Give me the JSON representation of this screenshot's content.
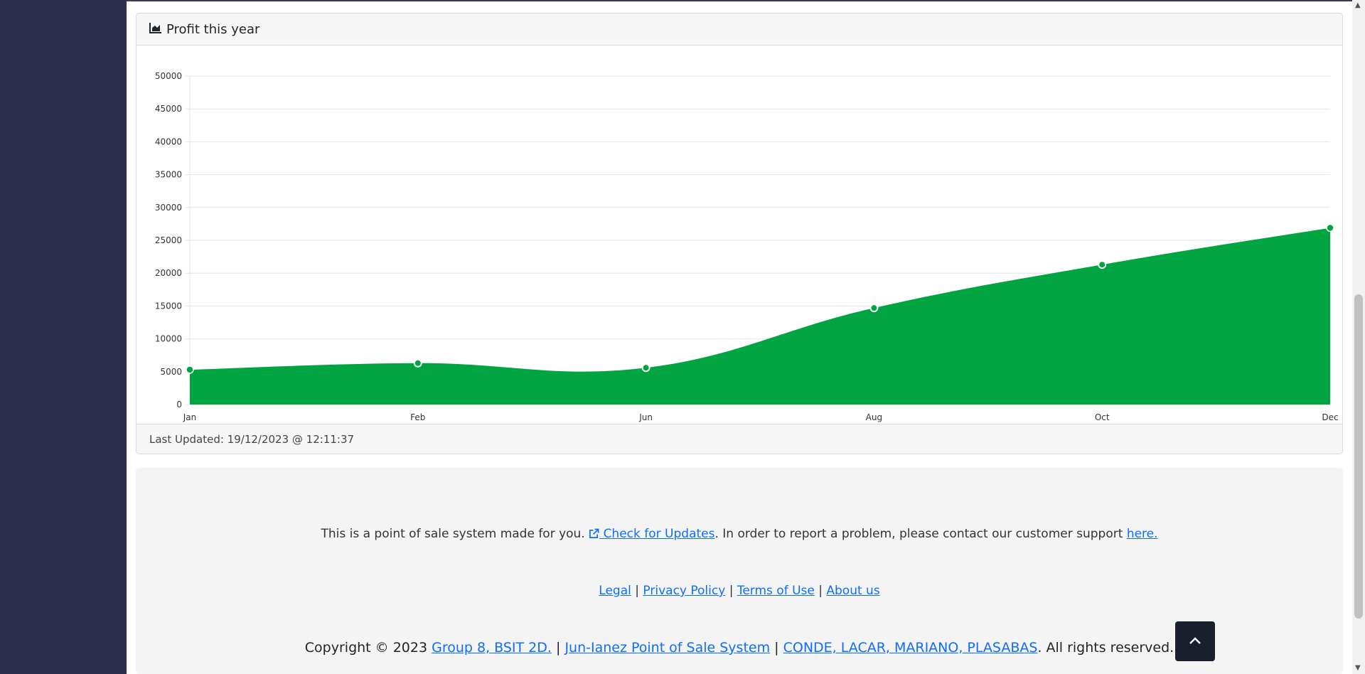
{
  "card": {
    "title": "Profit this year",
    "last_updated": "Last Updated: 19/12/2023 @ 12:11:37"
  },
  "chart_data": {
    "type": "area",
    "categories": [
      "Jan",
      "Feb",
      "Jun",
      "Aug",
      "Oct",
      "Dec"
    ],
    "values": [
      5300,
      6300,
      5600,
      14700,
      21300,
      26900
    ],
    "title": "",
    "xlabel": "",
    "ylabel": "",
    "ylim": [
      0,
      50000
    ],
    "yticks": [
      0,
      5000,
      10000,
      15000,
      20000,
      25000,
      30000,
      35000,
      40000,
      45000,
      50000
    ],
    "grid": true,
    "fill_color": "#00a441"
  },
  "footer": {
    "line1_text": "This is a point of sale system made for you.",
    "check_updates_label": "Check for Updates",
    "line1_mid": ". In order to report a problem, please contact our customer support",
    "here_label": "here.",
    "links": [
      "Legal",
      "Privacy Policy",
      "Terms of Use",
      "About us"
    ],
    "separator": "|",
    "copyright_prefix": "Copyright © 2023",
    "group_label": "Group 8, BSIT 2D.",
    "system_label": "Jun-Ianez Point of Sale System",
    "authors_label": "CONDE, LACAR, MARIANO, PLASABAS",
    "rights_suffix": ". All rights reserved."
  },
  "colors": {
    "sidebar": "#2e2f4c",
    "link": "#0d6efd",
    "area": "#00a441",
    "back_to_top": "#1a1f2e"
  },
  "icons": {
    "card_header": "area-chart-icon",
    "check_updates": "external-link-icon",
    "back_to_top": "chevron-up-icon"
  }
}
